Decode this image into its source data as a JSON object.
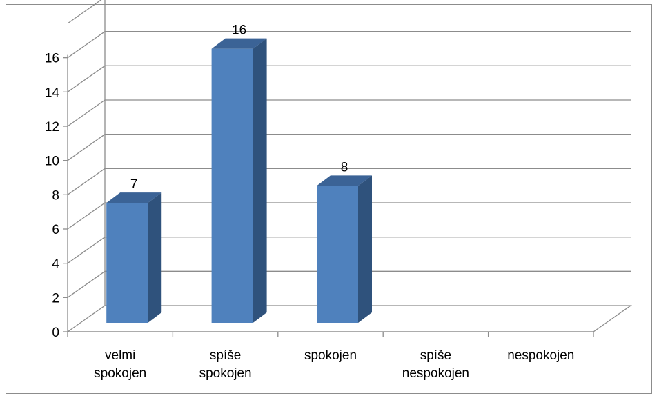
{
  "chart_data": {
    "type": "bar",
    "style": "3d-column",
    "title": "",
    "xlabel": "",
    "ylabel": "",
    "categories": [
      [
        "velmi",
        "spokojen"
      ],
      [
        "spíše",
        "spokojen"
      ],
      [
        "spokojen"
      ],
      [
        "spíše",
        "nespokojen"
      ],
      [
        "nespokojen"
      ]
    ],
    "series": [
      {
        "values": [
          7,
          16,
          8,
          0,
          0
        ],
        "color": "#4f81bd",
        "side_color": "#2f527c",
        "top_color": "#3b6396"
      }
    ],
    "data_labels": [
      "7",
      "16",
      "8",
      "",
      ""
    ],
    "yticks": [
      "0",
      "2",
      "4",
      "6",
      "8",
      "10",
      "12",
      "14",
      "16"
    ],
    "ylim": [
      0,
      18
    ],
    "grid": true,
    "legend": "none",
    "grid_color": "#8c8c8c"
  }
}
